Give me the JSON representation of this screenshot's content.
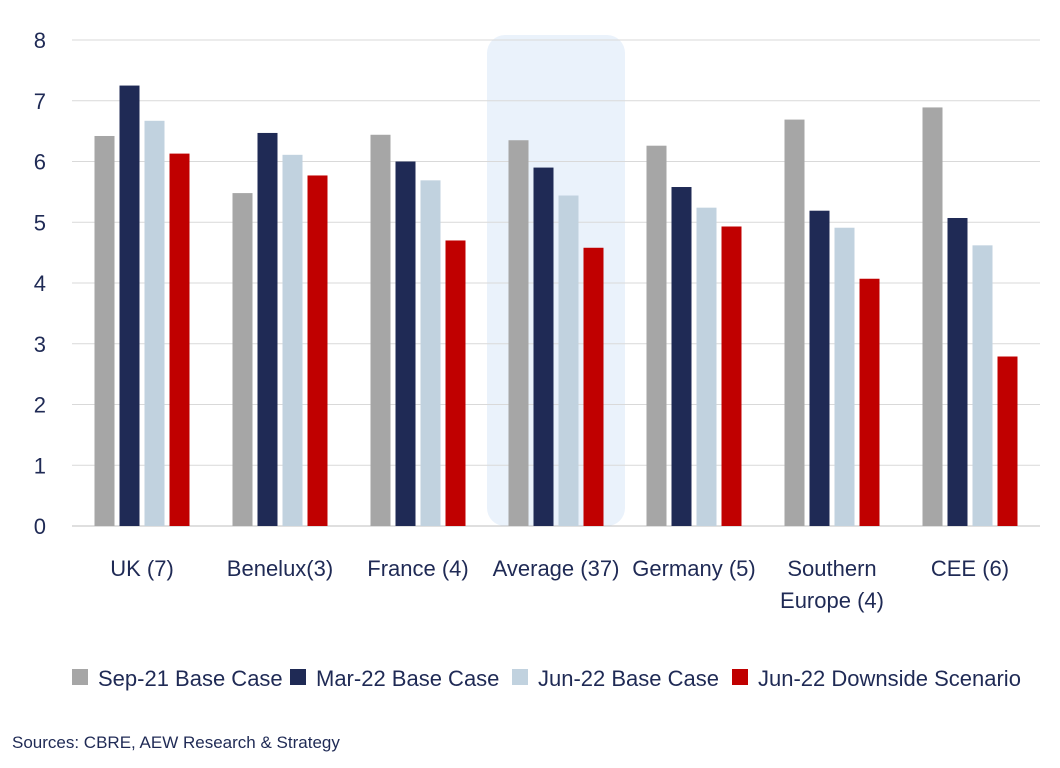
{
  "chart_data": {
    "type": "bar",
    "categories": [
      [
        "UK (7)"
      ],
      [
        "Benelux(3)"
      ],
      [
        "France (4)"
      ],
      [
        "Average (37)"
      ],
      [
        "Germany (5)"
      ],
      [
        "Southern",
        "Europe (4)"
      ],
      [
        "CEE (6)"
      ]
    ],
    "highlight_category": "Average (37)",
    "series": [
      {
        "name": "Sep-21 Base Case",
        "color": "#a6a6a6",
        "values": [
          6.42,
          5.48,
          6.44,
          6.35,
          6.26,
          6.69,
          6.89
        ]
      },
      {
        "name": "Mar-22 Base Case",
        "color": "#1f2a55",
        "values": [
          7.25,
          6.47,
          6.0,
          5.9,
          5.58,
          5.19,
          5.07
        ]
      },
      {
        "name": "Jun-22 Base Case",
        "color": "#c1d2df",
        "values": [
          6.67,
          6.11,
          5.69,
          5.44,
          5.24,
          4.91,
          4.62
        ]
      },
      {
        "name": "Jun-22 Downside Scenario",
        "color": "#c00000",
        "values": [
          6.13,
          5.77,
          4.7,
          4.58,
          4.93,
          4.07,
          2.79
        ]
      }
    ],
    "yticks": [
      "0",
      "1",
      "2",
      "3",
      "4",
      "5",
      "6",
      "7",
      "8"
    ],
    "ylim": [
      0,
      8
    ],
    "grid": true,
    "legend_position": "bottom"
  },
  "source": "Sources: CBRE, AEW Research & Strategy"
}
